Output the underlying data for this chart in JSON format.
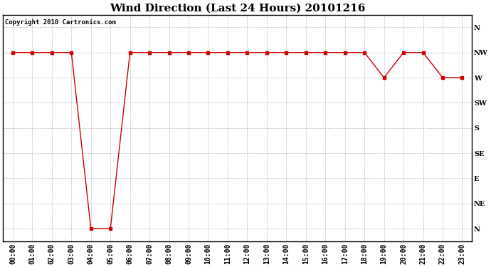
{
  "title": "Wind Direction (Last 24 Hours) 20101216",
  "copyright_text": "Copyright 2010 Cartronics.com",
  "background_color": "#ffffff",
  "line_color": "#cc0000",
  "grid_color": "#c0c0c0",
  "x_labels": [
    "00:00",
    "01:00",
    "02:00",
    "03:00",
    "04:00",
    "05:00",
    "06:00",
    "07:00",
    "08:00",
    "09:00",
    "10:00",
    "11:00",
    "12:00",
    "13:00",
    "14:00",
    "15:00",
    "16:00",
    "17:00",
    "18:00",
    "19:00",
    "20:00",
    "21:00",
    "22:00",
    "23:00"
  ],
  "y_labels": [
    "N",
    "NW",
    "W",
    "SW",
    "S",
    "SE",
    "E",
    "NE",
    "N"
  ],
  "y_values": [
    8,
    7,
    6,
    5,
    4,
    3,
    2,
    1,
    0
  ],
  "wind_data": [
    7,
    7,
    7,
    7,
    0,
    0,
    7,
    7,
    7,
    7,
    7,
    7,
    7,
    7,
    7,
    7,
    7,
    7,
    7,
    6,
    7,
    7,
    6,
    6
  ],
  "title_fontsize": 11,
  "tick_fontsize": 7,
  "annotation_fontsize": 6.5,
  "figsize": [
    6.9,
    3.75
  ],
  "dpi": 100
}
